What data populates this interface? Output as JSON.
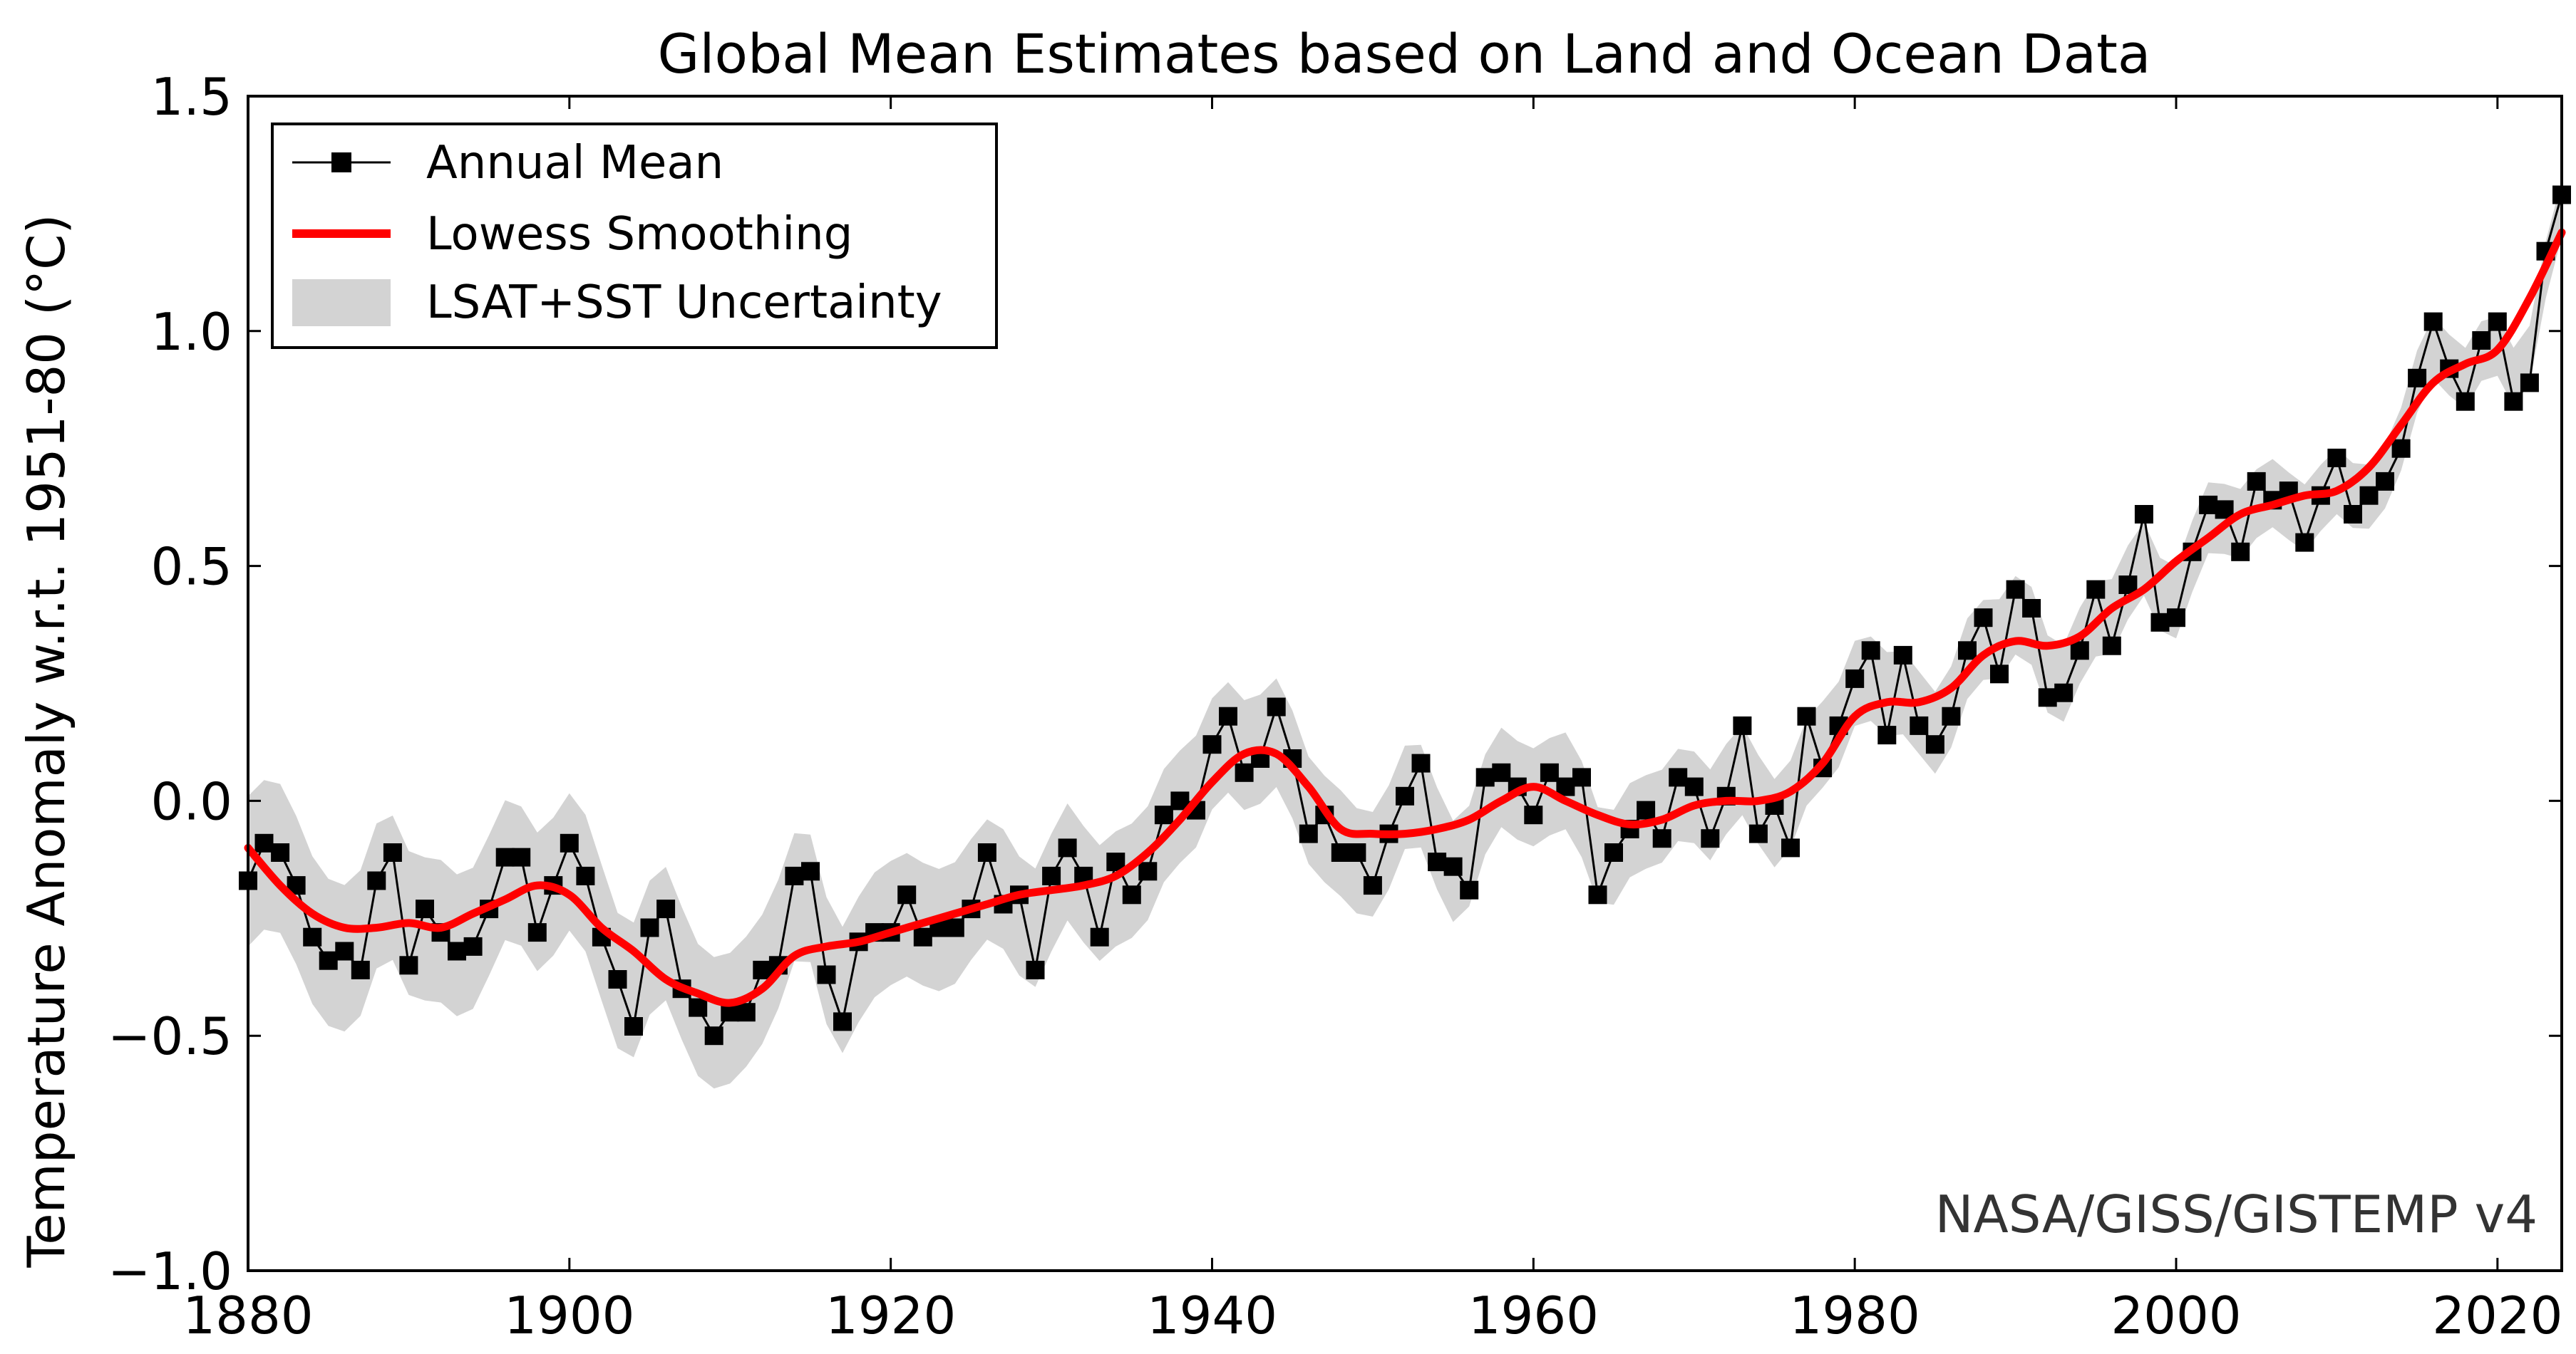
{
  "chart_data": {
    "type": "line",
    "title": "Global Mean Estimates based on Land and Ocean Data",
    "xlabel": "",
    "ylabel": "Temperature Anomaly w.r.t. 1951-80 (°C)",
    "xlim": [
      1880,
      2024
    ],
    "ylim": [
      -1.0,
      1.5
    ],
    "x_ticks": [
      1880,
      1900,
      1920,
      1940,
      1960,
      1980,
      2000,
      2020
    ],
    "x_tick_labels": [
      "1880",
      "1900",
      "1920",
      "1940",
      "1960",
      "1980",
      "2000",
      "2020"
    ],
    "y_ticks": [
      -1.0,
      -0.5,
      0.0,
      0.5,
      1.0,
      1.5
    ],
    "y_tick_labels": [
      "−1.0",
      "−0.5",
      "0.0",
      "0.5",
      "1.0",
      "1.5"
    ],
    "grid": false,
    "legend_position": "top-left",
    "annotation": "NASA/GISS/GISTEMP v4",
    "colors": {
      "annual": "#000000",
      "smooth": "#ff0000",
      "band": "#d3d3d3"
    },
    "series": [
      {
        "name": "Annual Mean",
        "style": "line-square-markers",
        "x_start": 1880,
        "values": [
          -0.17,
          -0.09,
          -0.11,
          -0.18,
          -0.29,
          -0.34,
          -0.32,
          -0.36,
          -0.17,
          -0.11,
          -0.35,
          -0.23,
          -0.28,
          -0.32,
          -0.31,
          -0.23,
          -0.12,
          -0.12,
          -0.28,
          -0.18,
          -0.09,
          -0.16,
          -0.29,
          -0.38,
          -0.48,
          -0.27,
          -0.23,
          -0.4,
          -0.44,
          -0.5,
          -0.45,
          -0.45,
          -0.36,
          -0.35,
          -0.16,
          -0.15,
          -0.37,
          -0.47,
          -0.3,
          -0.28,
          -0.28,
          -0.2,
          -0.29,
          -0.27,
          -0.27,
          -0.23,
          -0.11,
          -0.22,
          -0.2,
          -0.36,
          -0.16,
          -0.1,
          -0.16,
          -0.29,
          -0.13,
          -0.2,
          -0.15,
          -0.03,
          0.0,
          -0.02,
          0.12,
          0.18,
          0.06,
          0.09,
          0.2,
          0.09,
          -0.07,
          -0.03,
          -0.11,
          -0.11,
          -0.18,
          -0.07,
          0.01,
          0.08,
          -0.13,
          -0.14,
          -0.19,
          0.05,
          0.06,
          0.03,
          -0.03,
          0.06,
          0.03,
          0.05,
          -0.2,
          -0.11,
          -0.06,
          -0.02,
          -0.08,
          0.05,
          0.03,
          -0.08,
          0.01,
          0.16,
          -0.07,
          -0.01,
          -0.1,
          0.18,
          0.07,
          0.16,
          0.26,
          0.32,
          0.14,
          0.31,
          0.16,
          0.12,
          0.18,
          0.32,
          0.39,
          0.27,
          0.45,
          0.41,
          0.22,
          0.23,
          0.32,
          0.45,
          0.33,
          0.46,
          0.61,
          0.38,
          0.39,
          0.53,
          0.63,
          0.62,
          0.53,
          0.68,
          0.64,
          0.66,
          0.55,
          0.65,
          0.73,
          0.61,
          0.65,
          0.68,
          0.75,
          0.9,
          1.02,
          0.92,
          0.85,
          0.98,
          1.02,
          0.85,
          0.89,
          1.17,
          1.29
        ]
      },
      {
        "name": "Lowess Smoothing",
        "style": "thick-line",
        "points": [
          [
            1880,
            -0.1
          ],
          [
            1882,
            -0.18
          ],
          [
            1884,
            -0.24
          ],
          [
            1886,
            -0.27
          ],
          [
            1888,
            -0.27
          ],
          [
            1890,
            -0.26
          ],
          [
            1892,
            -0.27
          ],
          [
            1894,
            -0.24
          ],
          [
            1896,
            -0.21
          ],
          [
            1898,
            -0.18
          ],
          [
            1900,
            -0.2
          ],
          [
            1902,
            -0.27
          ],
          [
            1904,
            -0.32
          ],
          [
            1906,
            -0.38
          ],
          [
            1908,
            -0.41
          ],
          [
            1910,
            -0.43
          ],
          [
            1912,
            -0.4
          ],
          [
            1914,
            -0.33
          ],
          [
            1916,
            -0.31
          ],
          [
            1918,
            -0.3
          ],
          [
            1920,
            -0.28
          ],
          [
            1922,
            -0.26
          ],
          [
            1924,
            -0.24
          ],
          [
            1926,
            -0.22
          ],
          [
            1928,
            -0.2
          ],
          [
            1930,
            -0.19
          ],
          [
            1932,
            -0.18
          ],
          [
            1934,
            -0.16
          ],
          [
            1936,
            -0.11
          ],
          [
            1938,
            -0.04
          ],
          [
            1940,
            0.04
          ],
          [
            1942,
            0.1
          ],
          [
            1944,
            0.1
          ],
          [
            1946,
            0.03
          ],
          [
            1948,
            -0.06
          ],
          [
            1950,
            -0.07
          ],
          [
            1952,
            -0.07
          ],
          [
            1954,
            -0.06
          ],
          [
            1956,
            -0.04
          ],
          [
            1958,
            0.0
          ],
          [
            1960,
            0.03
          ],
          [
            1962,
            0.0
          ],
          [
            1964,
            -0.03
          ],
          [
            1966,
            -0.05
          ],
          [
            1968,
            -0.04
          ],
          [
            1970,
            -0.01
          ],
          [
            1972,
            0.0
          ],
          [
            1974,
            0.0
          ],
          [
            1976,
            0.02
          ],
          [
            1978,
            0.08
          ],
          [
            1980,
            0.18
          ],
          [
            1982,
            0.21
          ],
          [
            1984,
            0.21
          ],
          [
            1986,
            0.24
          ],
          [
            1988,
            0.31
          ],
          [
            1990,
            0.34
          ],
          [
            1992,
            0.33
          ],
          [
            1994,
            0.35
          ],
          [
            1996,
            0.41
          ],
          [
            1998,
            0.45
          ],
          [
            2000,
            0.51
          ],
          [
            2002,
            0.56
          ],
          [
            2004,
            0.61
          ],
          [
            2006,
            0.63
          ],
          [
            2008,
            0.65
          ],
          [
            2010,
            0.66
          ],
          [
            2012,
            0.71
          ],
          [
            2014,
            0.8
          ],
          [
            2016,
            0.89
          ],
          [
            2018,
            0.93
          ],
          [
            2020,
            0.96
          ],
          [
            2022,
            1.07
          ],
          [
            2024,
            1.21
          ]
        ]
      },
      {
        "name": "LSAT+SST Uncertainty",
        "style": "shaded-band",
        "half_width_start": 0.16,
        "half_width_end": 0.06
      }
    ]
  }
}
